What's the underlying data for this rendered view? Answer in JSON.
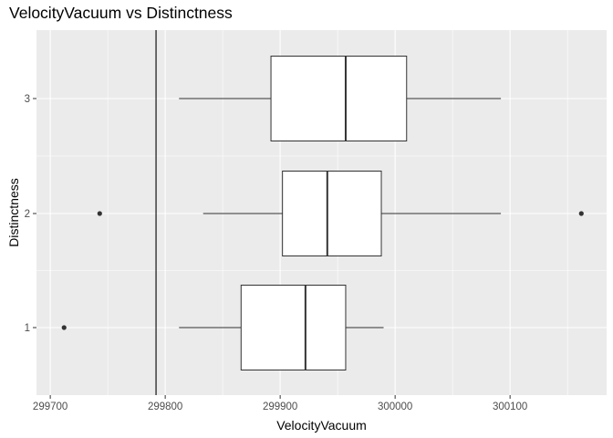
{
  "chart_data": {
    "type": "boxplot",
    "orientation": "horizontal",
    "title": "VelocityVacuum vs Distinctness",
    "xlabel": "VelocityVacuum",
    "ylabel": "Distinctness",
    "xlim": [
      299688,
      300184
    ],
    "x_ticks": [
      299700,
      299800,
      299900,
      300000,
      300100
    ],
    "x_tick_labels": [
      "299700",
      "299800",
      "299900",
      "300000",
      "300100"
    ],
    "categories": [
      "1",
      "2",
      "3"
    ],
    "boxes": [
      {
        "category": "1",
        "whisker_low": 299812,
        "q1": 299866,
        "median": 299922,
        "q3": 299957,
        "whisker_high": 299990,
        "outliers": [
          299712
        ]
      },
      {
        "category": "2",
        "whisker_low": 299833,
        "q1": 299902,
        "median": 299941,
        "q3": 299988,
        "whisker_high": 300092,
        "outliers": [
          299743,
          300162
        ]
      },
      {
        "category": "3",
        "whisker_low": 299812,
        "q1": 299892,
        "median": 299957,
        "q3": 300010,
        "whisker_high": 300092,
        "outliers": []
      }
    ],
    "reference_line_x": 299792,
    "grid": true,
    "colors": {
      "panel_bg": "#ebebeb",
      "grid": "#ffffff",
      "box_fill": "#ffffff",
      "box_stroke": "#333333",
      "point": "#333333",
      "ref_line": "#000000"
    }
  }
}
